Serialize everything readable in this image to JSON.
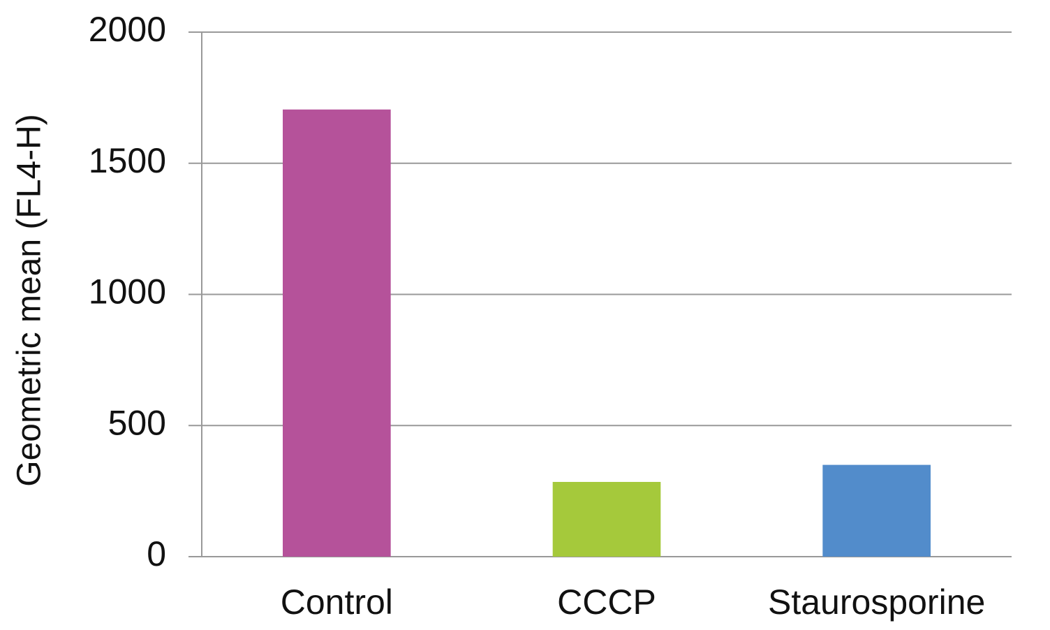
{
  "chart_data": {
    "type": "bar",
    "y_label": "Geometric mean (FL4-H)",
    "categories": [
      "Control",
      "CCCP",
      "Staurosporine"
    ],
    "values": [
      1705,
      285,
      350
    ],
    "colors": [
      "#b5529a",
      "#a5c93b",
      "#528ccb"
    ],
    "ylim": [
      0,
      2000
    ],
    "yticks": [
      0,
      500,
      1000,
      1500,
      2000
    ],
    "grid": true
  }
}
